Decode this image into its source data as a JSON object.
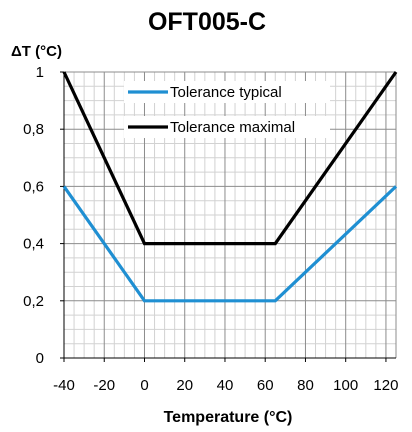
{
  "chart_data": {
    "type": "line",
    "title": "OFT005-C",
    "ylabel": "ΔT (°C)",
    "xlabel": "Temperature (°C)",
    "xlim": [
      -40,
      125
    ],
    "ylim": [
      0,
      1
    ],
    "x_ticks": [
      -40,
      -20,
      0,
      20,
      40,
      60,
      80,
      100,
      120
    ],
    "x_tick_labels": [
      "-40",
      "-20",
      "0",
      "20",
      "40",
      "60",
      "80",
      "100",
      "120"
    ],
    "y_ticks": [
      0,
      0.2,
      0.4,
      0.6,
      0.8,
      1
    ],
    "y_tick_labels": [
      "0",
      "0,2",
      "0,4",
      "0,6",
      "0,8",
      "1"
    ],
    "grid": true,
    "legend_position": "top",
    "series": [
      {
        "name": "Tolerance typical",
        "color": "#1f8fd2",
        "x": [
          -40,
          0,
          65,
          125
        ],
        "y": [
          0.6,
          0.2,
          0.2,
          0.6
        ]
      },
      {
        "name": "Tolerance maximal",
        "color": "#000000",
        "x": [
          -40,
          0,
          65,
          125
        ],
        "y": [
          1.0,
          0.4,
          0.4,
          1.0
        ]
      }
    ]
  }
}
